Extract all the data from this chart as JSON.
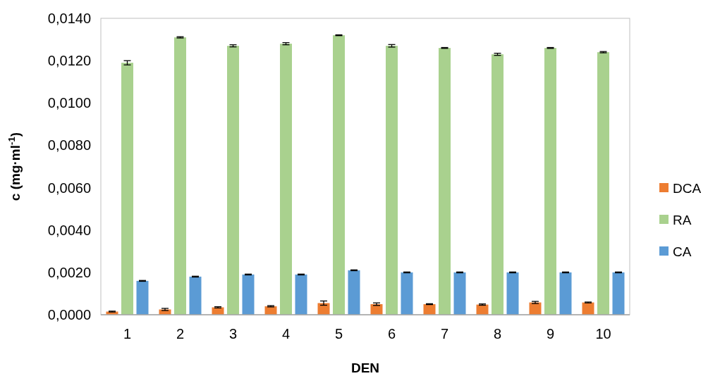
{
  "chart_data": {
    "type": "bar",
    "xlabel": "DEN",
    "ylabel": "c (mg·ml$^{-1}$)",
    "categories": [
      "1",
      "2",
      "3",
      "4",
      "5",
      "6",
      "7",
      "8",
      "9",
      "10"
    ],
    "series": [
      {
        "name": "DCA",
        "color": "#ed7d31",
        "values": [
          0.00015,
          0.00025,
          0.00035,
          0.0004,
          0.00055,
          0.0005,
          0.0005,
          0.00048,
          0.00058,
          0.00058
        ],
        "errors": [
          2e-05,
          5e-05,
          3e-05,
          3e-05,
          0.0001,
          6e-05,
          2e-05,
          3e-05,
          5e-05,
          2e-05
        ]
      },
      {
        "name": "RA",
        "color": "#a9d18e",
        "values": [
          0.0119,
          0.0131,
          0.0127,
          0.0128,
          0.0132,
          0.0127,
          0.0126,
          0.0123,
          0.0126,
          0.0124
        ],
        "errors": [
          0.0001,
          3e-05,
          5e-05,
          5e-05,
          2e-05,
          6e-05,
          2e-05,
          5e-05,
          2e-05,
          3e-05
        ]
      },
      {
        "name": "CA",
        "color": "#5b9bd5",
        "values": [
          0.0016,
          0.0018,
          0.0019,
          0.0019,
          0.0021,
          0.002,
          0.002,
          0.002,
          0.002,
          0.002
        ],
        "errors": [
          2e-05,
          2e-05,
          2e-05,
          2e-05,
          2e-05,
          2e-05,
          2e-05,
          2e-05,
          2e-05,
          2e-05
        ]
      }
    ],
    "ylim": [
      0,
      0.014
    ],
    "yticks": [
      {
        "value": 0,
        "label": "0,0000"
      },
      {
        "value": 0.002,
        "label": "0,0020"
      },
      {
        "value": 0.004,
        "label": "0,0040"
      },
      {
        "value": 0.006,
        "label": "0,0060"
      },
      {
        "value": 0.008,
        "label": "0,0080"
      },
      {
        "value": 0.01,
        "label": "0,0100"
      },
      {
        "value": 0.012,
        "label": "0,0120"
      },
      {
        "value": 0.014,
        "label": "0,0140"
      }
    ],
    "grid": false,
    "legend": "right"
  }
}
